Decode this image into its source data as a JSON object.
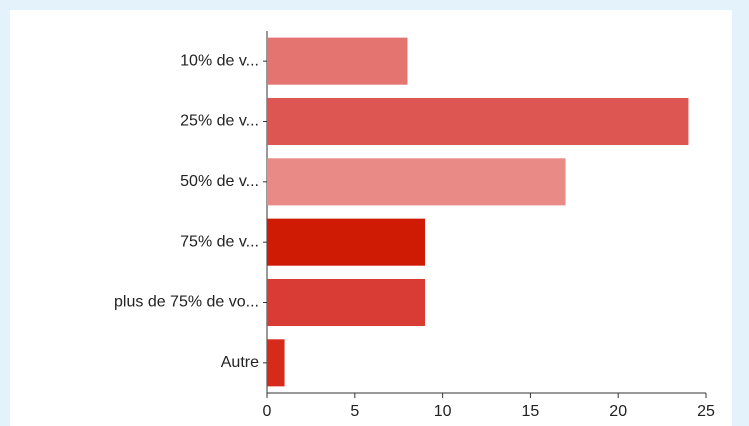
{
  "chart_data": {
    "type": "barh",
    "categories": [
      "10% de v...",
      "25% de v...",
      "50% de v...",
      "75% de v...",
      "plus de 75% de vo...",
      "Autre"
    ],
    "values": [
      8,
      24,
      17,
      9,
      9,
      1
    ],
    "colors": [
      "#e47470",
      "#dd5652",
      "#e98a87",
      "#cf1a04",
      "#d93c34",
      "#d62a1b"
    ],
    "xlim": [
      0,
      25
    ],
    "xticks": [
      0,
      5,
      10,
      15,
      20,
      25
    ],
    "grid": false
  }
}
